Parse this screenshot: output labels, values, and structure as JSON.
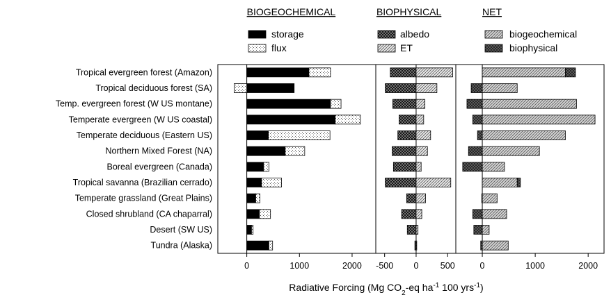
{
  "categories": [
    "Tropical evergreen forest (Amazon)",
    "Tropical deciduous forest (SA)",
    "Temp. evergreen forest (W US montane)",
    "Temperate evergreen (W US coastal)",
    "Temperate deciduous (Eastern US)",
    "Northern Mixed Forest (NA)",
    "Boreal evergreen (Canada)",
    "Tropical savanna (Brazilian cerrado)",
    "Temperate grassland (Great Plains)",
    "Closed shrubland (CA chaparral)",
    "Desert (SW US)",
    "Tundra (Alaska)"
  ],
  "xlabel": [
    "Radiative Forcing (Mg CO",
    "2",
    "-eq ha",
    "-1",
    " 100 yrs",
    "-1",
    ")"
  ],
  "chart_data": [
    {
      "type": "bar",
      "orientation": "horizontal",
      "stacked": true,
      "title": "BIOGEOCHEMICAL",
      "xlim": [
        -550,
        2450
      ],
      "xticks": [
        0,
        1000,
        2000
      ],
      "series": [
        {
          "name": "storage",
          "color": "#000000",
          "pattern": "solid",
          "values": [
            1180,
            900,
            1590,
            1680,
            410,
            730,
            320,
            280,
            170,
            240,
            90,
            420
          ]
        },
        {
          "name": "flux",
          "color": "#ffffff",
          "pattern": "dots",
          "values": [
            410,
            -240,
            200,
            480,
            1170,
            370,
            100,
            380,
            80,
            210,
            30,
            70
          ]
        }
      ]
    },
    {
      "type": "bar",
      "orientation": "horizontal",
      "stacked": true,
      "title": "BIOPHYSICAL",
      "xlim": [
        -640,
        630
      ],
      "xticks": [
        -500,
        0,
        500
      ],
      "series": [
        {
          "name": "albedo",
          "color": "#8a8a8a",
          "pattern": "crosshatch",
          "values": [
            -410,
            -490,
            -370,
            -270,
            -290,
            -380,
            -360,
            -490,
            -150,
            -230,
            -140,
            -20
          ]
        },
        {
          "name": "ET",
          "color": "#e6e6e6",
          "pattern": "hatch",
          "values": [
            580,
            330,
            140,
            120,
            230,
            180,
            80,
            550,
            150,
            90,
            30,
            10
          ]
        }
      ]
    },
    {
      "type": "bar",
      "orientation": "horizontal",
      "stacked": true,
      "title": "NET",
      "xlim": [
        -500,
        2300
      ],
      "xticks": [
        0,
        1000,
        2000
      ],
      "series": [
        {
          "name": "biogeochemical",
          "color": "#d2d2d2",
          "pattern": "hatch",
          "values": [
            1570,
            660,
            1780,
            2130,
            1570,
            1080,
            420,
            660,
            280,
            460,
            130,
            490
          ]
        },
        {
          "name": "biophysical",
          "color": "#1a1a1a",
          "pattern": "crosshatch",
          "values": [
            190,
            -210,
            -290,
            -180,
            -90,
            -260,
            -370,
            60,
            -10,
            -180,
            -160,
            -30
          ]
        }
      ]
    }
  ]
}
